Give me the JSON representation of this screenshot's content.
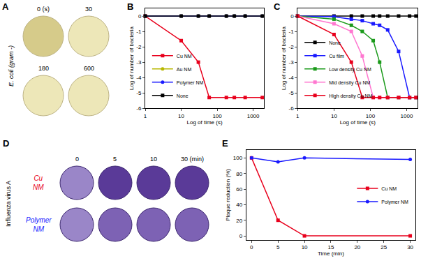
{
  "panels": [
    {
      "label": "A",
      "type": "image",
      "row_label": "E. coli (gram -)",
      "images": [
        "0 (s)",
        "30",
        "180",
        "600"
      ]
    },
    {
      "label": "D",
      "type": "image",
      "row_label": "Influenza virus A",
      "rows": [
        {
          "label": "Cu NM",
          "color": "#e8001c"
        },
        {
          "label": "Polymer NM",
          "color": "#1a1aff"
        }
      ],
      "columns": [
        "0",
        "5",
        "10",
        "30 (min)"
      ]
    }
  ],
  "chart_data": [
    {
      "label": "B",
      "type": "line",
      "log": "x",
      "grid": false,
      "legend": "lower left",
      "x_label": "Log of time (s)",
      "y_label": "Log of number of bacteria",
      "x": [
        1,
        10,
        30,
        60,
        180,
        300,
        600,
        1800
      ],
      "xlim": [
        1,
        2000
      ],
      "xticks": [
        1,
        10,
        100,
        1000
      ],
      "ylim": [
        -6,
        0.5
      ],
      "yticks": [
        -6,
        -5,
        -4,
        -3,
        -2,
        -1,
        0
      ],
      "series": [
        {
          "name": "Cu NM",
          "color": "#e8001c",
          "marker": "square",
          "values": [
            0,
            -1.6,
            -3.0,
            -5.3,
            -5.3,
            -5.3,
            -5.3,
            -5.3
          ]
        },
        {
          "name": "Au NM",
          "color": "#b8b800",
          "marker": "circle",
          "values": [
            0,
            0,
            0,
            0,
            0,
            0,
            0,
            0
          ]
        },
        {
          "name": "Polymer NM",
          "color": "#1a1aff",
          "marker": "circle",
          "values": [
            0,
            0,
            0,
            0,
            0,
            0,
            0,
            0
          ]
        },
        {
          "name": "None",
          "color": "#000000",
          "marker": "square",
          "values": [
            0,
            0,
            0,
            0,
            0,
            0,
            0,
            0
          ]
        }
      ]
    },
    {
      "label": "C",
      "type": "line",
      "log": "x",
      "grid": false,
      "legend": "lower left",
      "x_label": "Log of time (s)",
      "y_label": "Log of number of bacteria",
      "x": [
        1,
        10,
        30,
        60,
        120,
        180,
        300,
        600,
        1200,
        1800
      ],
      "xlim": [
        1,
        2000
      ],
      "xticks": [
        1,
        10,
        100,
        1000
      ],
      "ylim": [
        -6,
        0.5
      ],
      "yticks": [
        -6,
        -5,
        -4,
        -3,
        -2,
        -1,
        0
      ],
      "series": [
        {
          "name": "None",
          "color": "#000000",
          "marker": "square",
          "values": [
            0,
            0,
            0,
            0,
            0,
            0,
            0,
            0,
            0,
            0
          ]
        },
        {
          "name": "Cu film",
          "color": "#1a1aff",
          "marker": "square",
          "values": [
            0,
            -0.05,
            -0.2,
            -0.3,
            -0.5,
            -0.6,
            -0.9,
            -2.3,
            -5.3,
            -5.3
          ]
        },
        {
          "name": "Low density Cu NM",
          "color": "#1a9a1a",
          "marker": "square",
          "values": [
            0,
            -0.2,
            -0.6,
            -1.0,
            -1.6,
            -3.0,
            -5.3,
            -5.3,
            -5.3,
            -5.3
          ]
        },
        {
          "name": "Mid density Cu NM",
          "color": "#ff77d0",
          "marker": "square",
          "values": [
            0,
            -0.5,
            -1.0,
            -2.6,
            -5.3,
            -5.3,
            -5.3,
            -5.3,
            -5.3,
            -5.3
          ]
        },
        {
          "name": "High density Cu NM",
          "color": "#e8001c",
          "marker": "square",
          "values": [
            0,
            -1.2,
            -3.0,
            -5.3,
            -5.3,
            -5.3,
            -5.3,
            -5.3,
            -5.3,
            -5.3
          ]
        }
      ]
    },
    {
      "label": "E",
      "type": "line",
      "grid": false,
      "legend": "center right",
      "x_label": "Time (min)",
      "y_label": "Plaque reduction (%)",
      "x": [
        0,
        5,
        10,
        30
      ],
      "xlim": [
        -1,
        31
      ],
      "xticks": [
        0,
        5,
        10,
        15,
        20,
        25,
        30
      ],
      "ylim": [
        -5,
        110
      ],
      "yticks": [
        0,
        20,
        40,
        60,
        80,
        100
      ],
      "series": [
        {
          "name": "Cu NM",
          "color": "#e8001c",
          "marker": "square",
          "values": [
            100,
            20,
            0,
            0
          ]
        },
        {
          "name": "Polymer NM",
          "color": "#1a1aff",
          "marker": "circle",
          "values": [
            100,
            95,
            100,
            98
          ]
        }
      ]
    }
  ]
}
